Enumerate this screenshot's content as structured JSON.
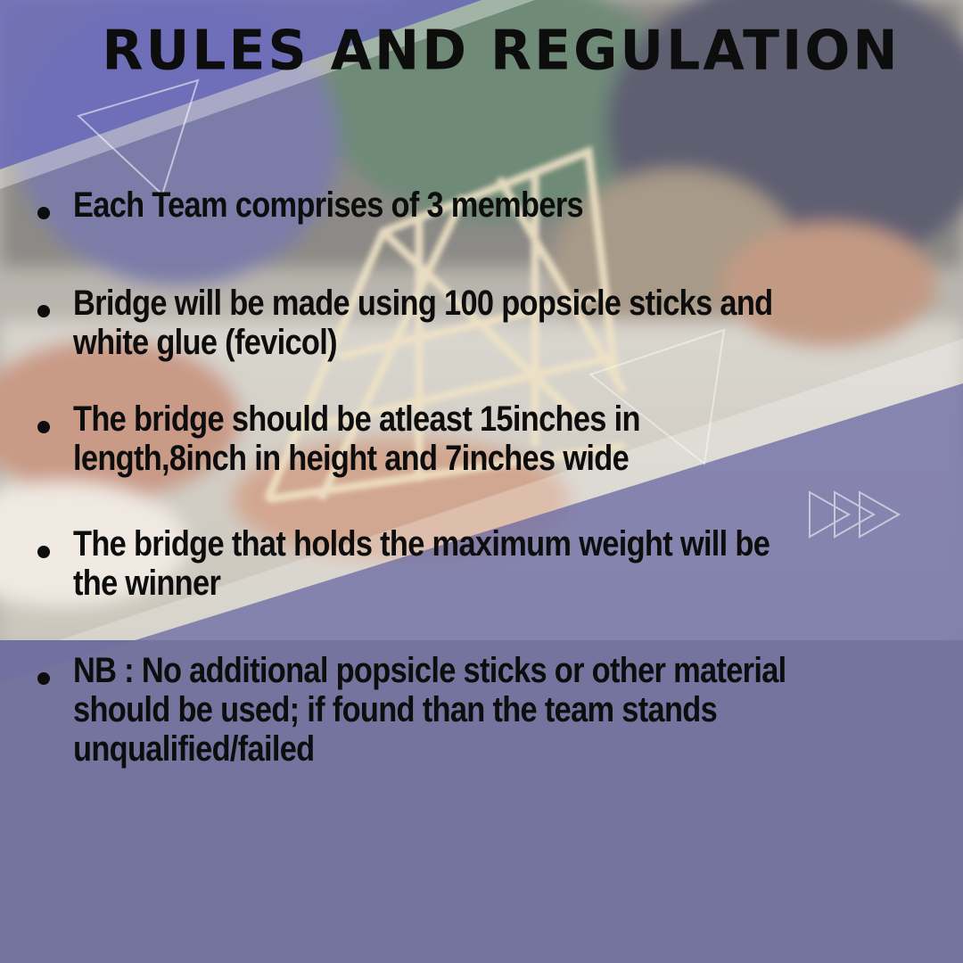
{
  "title": "RULES AND REGULATION",
  "rules": [
    "Each Team comprises of 3 members",
    "Bridge will be made using 100 popsicle sticks and white glue (fevicol)",
    "The bridge should be atleast 15inches in length,8inch in height and 7inches wide",
    "The bridge that holds the maximum weight will be the winner",
    "NB : No additional popsicle sticks or other material should be used; if found than the team stands unqualified/failed"
  ],
  "colors": {
    "background": "#74749f",
    "accent_purple": "#6c6cbc",
    "text": "#0d0d0d"
  }
}
